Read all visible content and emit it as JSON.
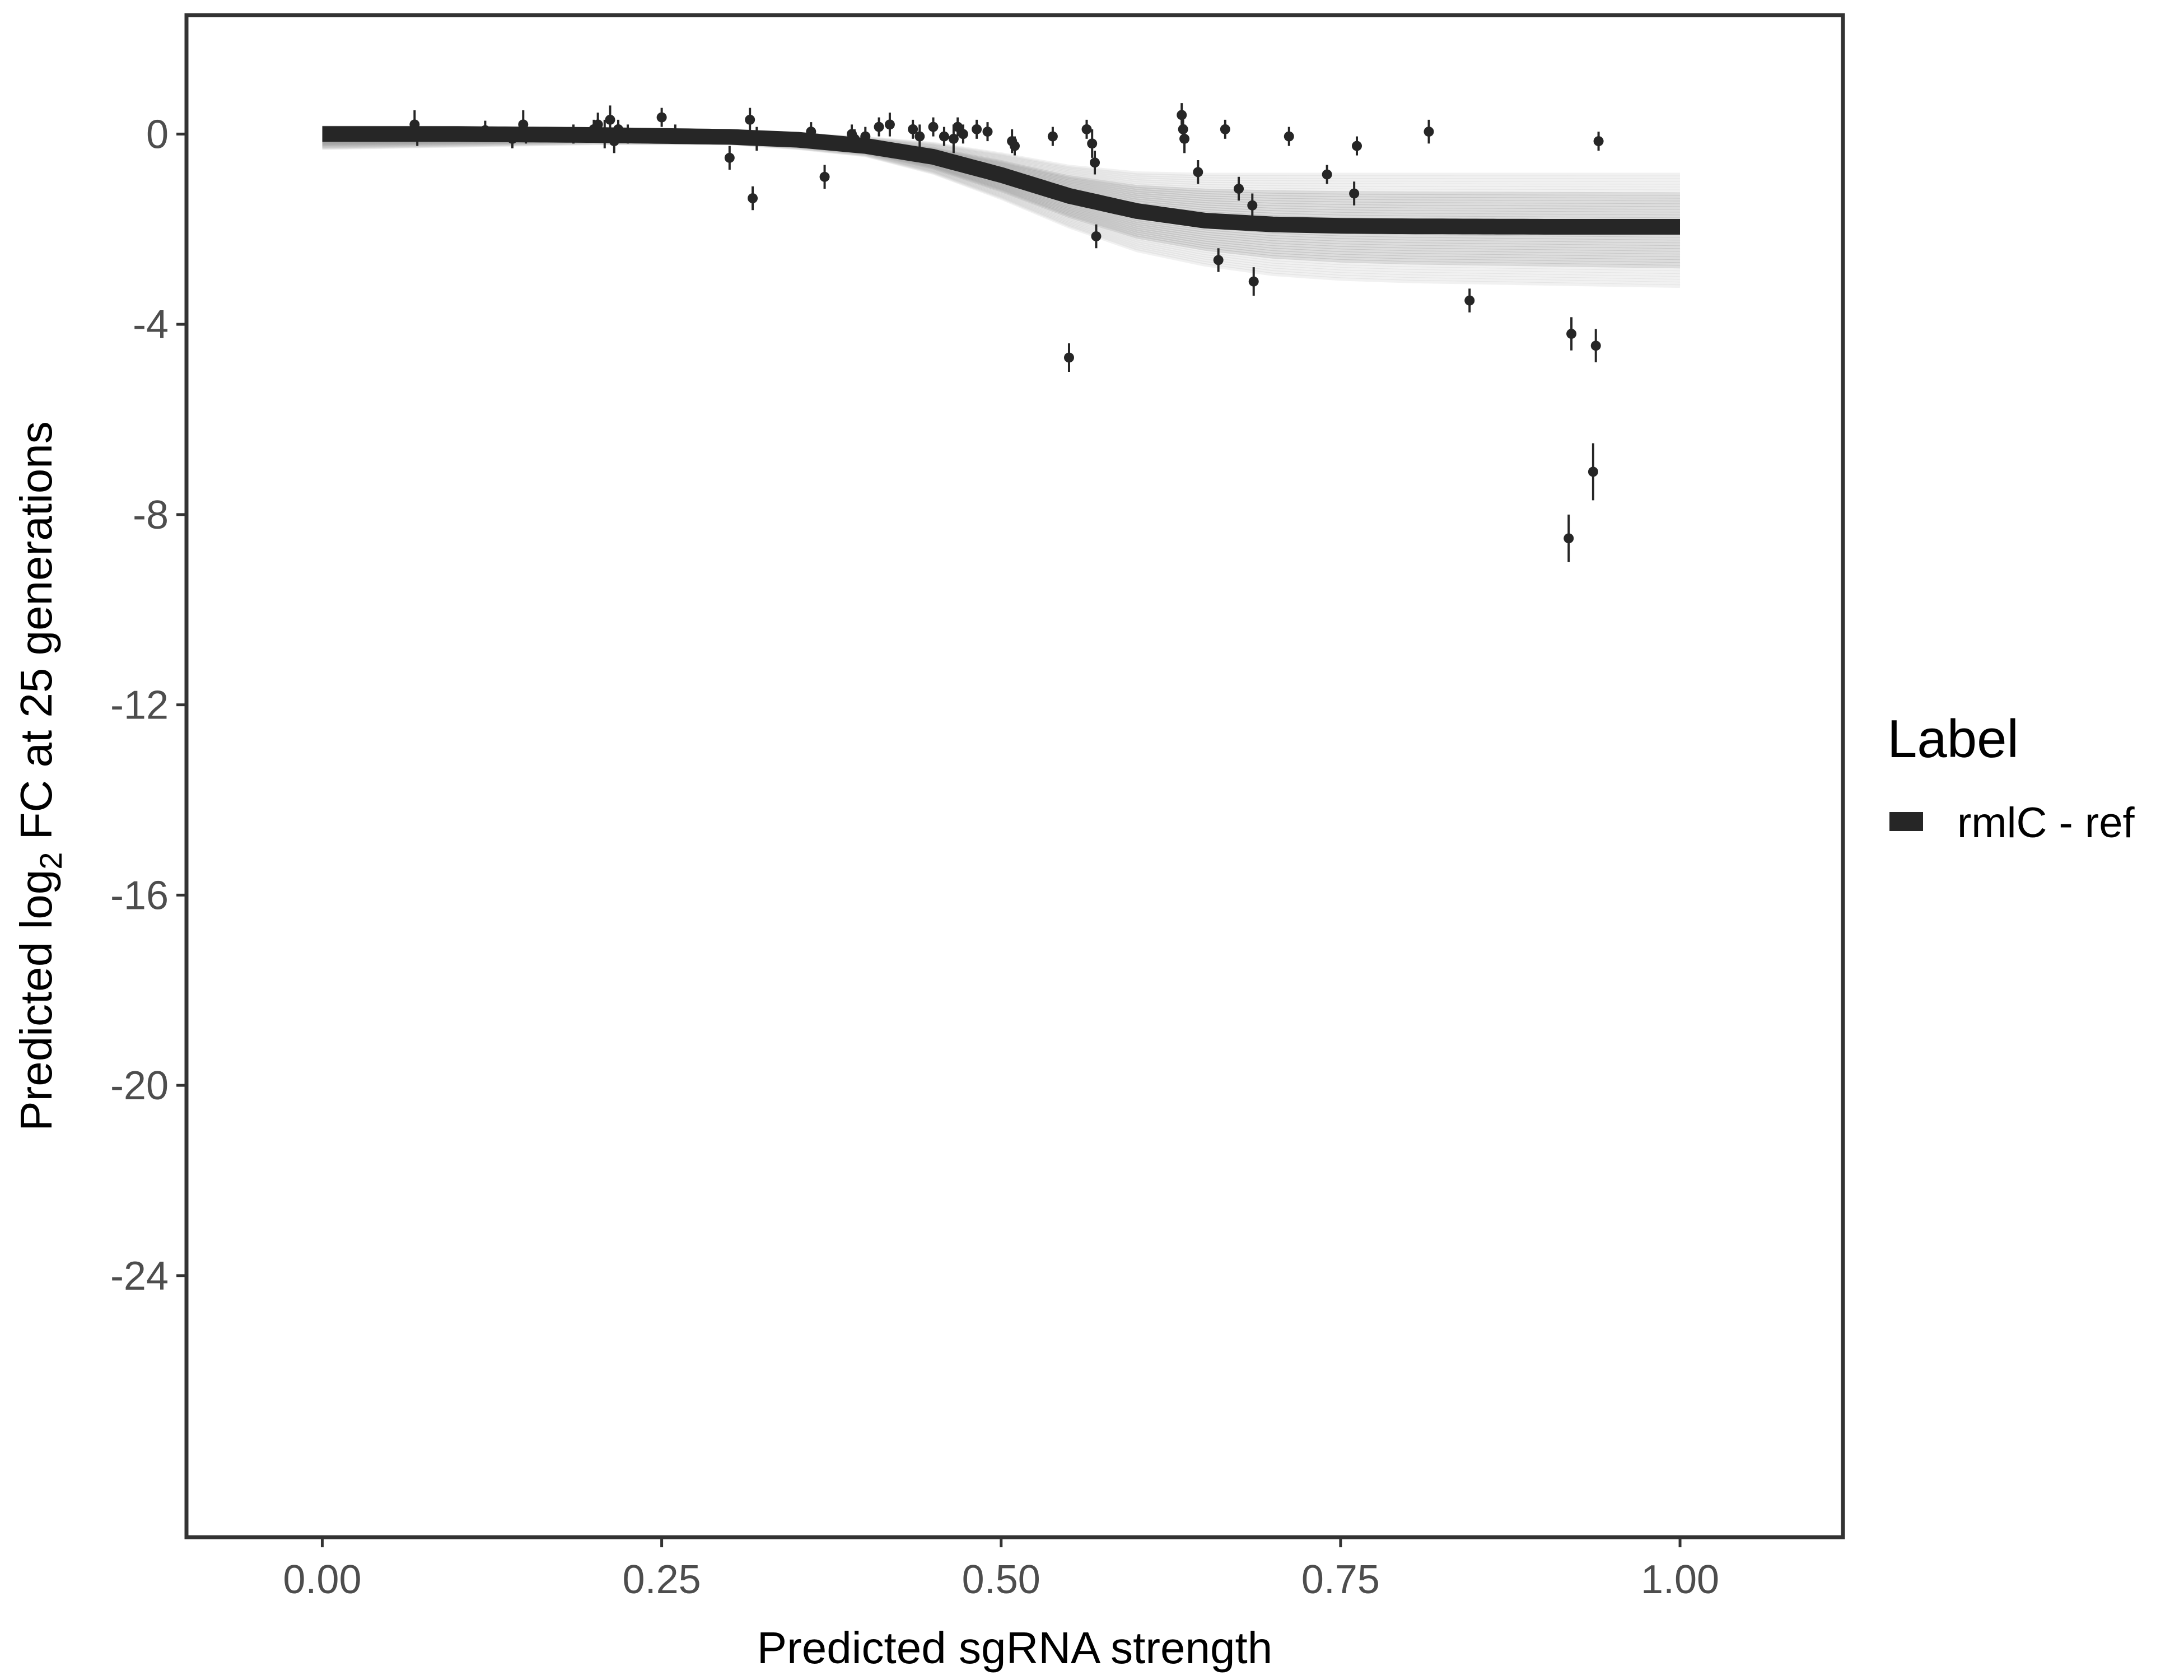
{
  "chart_data": {
    "type": "scatter",
    "xlabel": "Predicted sgRNA strength",
    "ylabel_main": "Predicted  log",
    "ylabel_sub": "2",
    "ylabel_rest": " FC at 25 generations",
    "xlim": [
      -0.1,
      1.12
    ],
    "ylim": [
      -29.5,
      2.5
    ],
    "x_ticks": [
      0.0,
      0.25,
      0.5,
      0.75,
      1.0
    ],
    "x_tick_labels": [
      "0.00",
      "0.25",
      "0.50",
      "0.75",
      "1.00"
    ],
    "y_ticks": [
      0,
      -4,
      -8,
      -12,
      -16,
      -20,
      -24
    ],
    "y_tick_labels": [
      "0",
      "-4",
      "-8",
      "-12",
      "-16",
      "-20",
      "-24"
    ],
    "grid": false,
    "legend": {
      "title": "Label",
      "position": "right",
      "entries": [
        {
          "label": "rmlC - ref",
          "color": "#262626"
        }
      ]
    },
    "colors": {
      "fit_line": "#262626",
      "draw_lines": "#9e9e9e",
      "points": "#262626",
      "frame": "#333333"
    },
    "fit_curve": {
      "name": "rmlC - ref",
      "x": [
        0.0,
        0.1,
        0.2,
        0.3,
        0.35,
        0.4,
        0.45,
        0.5,
        0.55,
        0.6,
        0.65,
        0.7,
        0.75,
        0.8,
        0.9,
        1.0
      ],
      "y": [
        0.0,
        0.0,
        -0.02,
        -0.06,
        -0.12,
        -0.25,
        -0.48,
        -0.86,
        -1.3,
        -1.62,
        -1.82,
        -1.9,
        -1.93,
        -1.94,
        -1.95,
        -1.95
      ]
    },
    "ribbon": {
      "x": [
        0.0,
        0.1,
        0.2,
        0.3,
        0.35,
        0.4,
        0.45,
        0.5,
        0.55,
        0.6,
        0.65,
        0.7,
        0.75,
        0.8,
        0.9,
        1.0
      ],
      "upper": [
        0.15,
        0.14,
        0.12,
        0.05,
        0.0,
        -0.08,
        -0.2,
        -0.42,
        -0.68,
        -0.82,
        -0.85,
        -0.85,
        -0.85,
        -0.85,
        -0.85,
        -0.85
      ],
      "lower": [
        -0.3,
        -0.25,
        -0.2,
        -0.2,
        -0.3,
        -0.45,
        -0.82,
        -1.35,
        -1.95,
        -2.45,
        -2.75,
        -2.95,
        -3.05,
        -3.1,
        -3.15,
        -3.2
      ]
    },
    "points": [
      {
        "x": 0.068,
        "y": 0.2,
        "se": 0.3
      },
      {
        "x": 0.07,
        "y": 0.0,
        "se": 0.25
      },
      {
        "x": 0.12,
        "y": 0.08,
        "se": 0.2
      },
      {
        "x": 0.14,
        "y": -0.1,
        "se": 0.2
      },
      {
        "x": 0.148,
        "y": 0.2,
        "se": 0.3
      },
      {
        "x": 0.15,
        "y": 0.0,
        "se": 0.2
      },
      {
        "x": 0.185,
        "y": 0.0,
        "se": 0.2
      },
      {
        "x": 0.2,
        "y": 0.1,
        "se": 0.2
      },
      {
        "x": 0.203,
        "y": 0.2,
        "se": 0.25
      },
      {
        "x": 0.208,
        "y": 0.0,
        "se": 0.3
      },
      {
        "x": 0.212,
        "y": 0.3,
        "se": 0.3
      },
      {
        "x": 0.215,
        "y": -0.15,
        "se": 0.25
      },
      {
        "x": 0.218,
        "y": 0.1,
        "se": 0.2
      },
      {
        "x": 0.225,
        "y": 0.0,
        "se": 0.2
      },
      {
        "x": 0.25,
        "y": 0.35,
        "se": 0.2
      },
      {
        "x": 0.26,
        "y": 0.0,
        "se": 0.2
      },
      {
        "x": 0.3,
        "y": -0.5,
        "se": 0.25
      },
      {
        "x": 0.315,
        "y": 0.3,
        "se": 0.25
      },
      {
        "x": 0.317,
        "y": -1.35,
        "se": 0.25
      },
      {
        "x": 0.32,
        "y": -0.1,
        "se": 0.25
      },
      {
        "x": 0.36,
        "y": 0.05,
        "se": 0.2
      },
      {
        "x": 0.37,
        "y": -0.9,
        "se": 0.25
      },
      {
        "x": 0.39,
        "y": 0.0,
        "se": 0.2
      },
      {
        "x": 0.392,
        "y": -0.1,
        "se": 0.2
      },
      {
        "x": 0.4,
        "y": -0.05,
        "se": 0.2
      },
      {
        "x": 0.41,
        "y": 0.15,
        "se": 0.2
      },
      {
        "x": 0.418,
        "y": 0.2,
        "se": 0.25
      },
      {
        "x": 0.435,
        "y": 0.1,
        "se": 0.2
      },
      {
        "x": 0.44,
        "y": -0.05,
        "se": 0.25
      },
      {
        "x": 0.45,
        "y": 0.15,
        "se": 0.2
      },
      {
        "x": 0.458,
        "y": -0.05,
        "se": 0.2
      },
      {
        "x": 0.465,
        "y": -0.1,
        "se": 0.3
      },
      {
        "x": 0.468,
        "y": 0.15,
        "se": 0.2
      },
      {
        "x": 0.472,
        "y": 0.0,
        "se": 0.2
      },
      {
        "x": 0.482,
        "y": 0.1,
        "se": 0.2
      },
      {
        "x": 0.49,
        "y": 0.05,
        "se": 0.2
      },
      {
        "x": 0.508,
        "y": -0.15,
        "se": 0.25
      },
      {
        "x": 0.51,
        "y": -0.25,
        "se": 0.2
      },
      {
        "x": 0.538,
        "y": -0.05,
        "se": 0.2
      },
      {
        "x": 0.55,
        "y": -4.7,
        "se": 0.3
      },
      {
        "x": 0.563,
        "y": 0.1,
        "se": 0.2
      },
      {
        "x": 0.567,
        "y": -0.2,
        "se": 0.3
      },
      {
        "x": 0.569,
        "y": -0.6,
        "se": 0.25
      },
      {
        "x": 0.57,
        "y": -2.15,
        "se": 0.25
      },
      {
        "x": 0.633,
        "y": 0.4,
        "se": 0.25
      },
      {
        "x": 0.634,
        "y": 0.1,
        "se": 0.25
      },
      {
        "x": 0.635,
        "y": -0.1,
        "se": 0.3
      },
      {
        "x": 0.66,
        "y": -2.65,
        "se": 0.25
      },
      {
        "x": 0.665,
        "y": 0.1,
        "se": 0.2
      },
      {
        "x": 0.645,
        "y": -0.8,
        "se": 0.25
      },
      {
        "x": 0.675,
        "y": -1.15,
        "se": 0.25
      },
      {
        "x": 0.685,
        "y": -1.5,
        "se": 0.25
      },
      {
        "x": 0.686,
        "y": -3.1,
        "se": 0.3
      },
      {
        "x": 0.712,
        "y": -0.05,
        "se": 0.2
      },
      {
        "x": 0.74,
        "y": -0.85,
        "se": 0.2
      },
      {
        "x": 0.76,
        "y": -1.25,
        "se": 0.25
      },
      {
        "x": 0.762,
        "y": -0.25,
        "se": 0.2
      },
      {
        "x": 0.815,
        "y": 0.05,
        "se": 0.25
      },
      {
        "x": 0.845,
        "y": -3.5,
        "se": 0.25
      },
      {
        "x": 0.918,
        "y": -8.5,
        "se": 0.5
      },
      {
        "x": 0.92,
        "y": -4.2,
        "se": 0.35
      },
      {
        "x": 0.936,
        "y": -7.1,
        "se": 0.6
      },
      {
        "x": 0.938,
        "y": -4.45,
        "se": 0.35
      },
      {
        "x": 0.94,
        "y": -0.15,
        "se": 0.2
      }
    ]
  }
}
